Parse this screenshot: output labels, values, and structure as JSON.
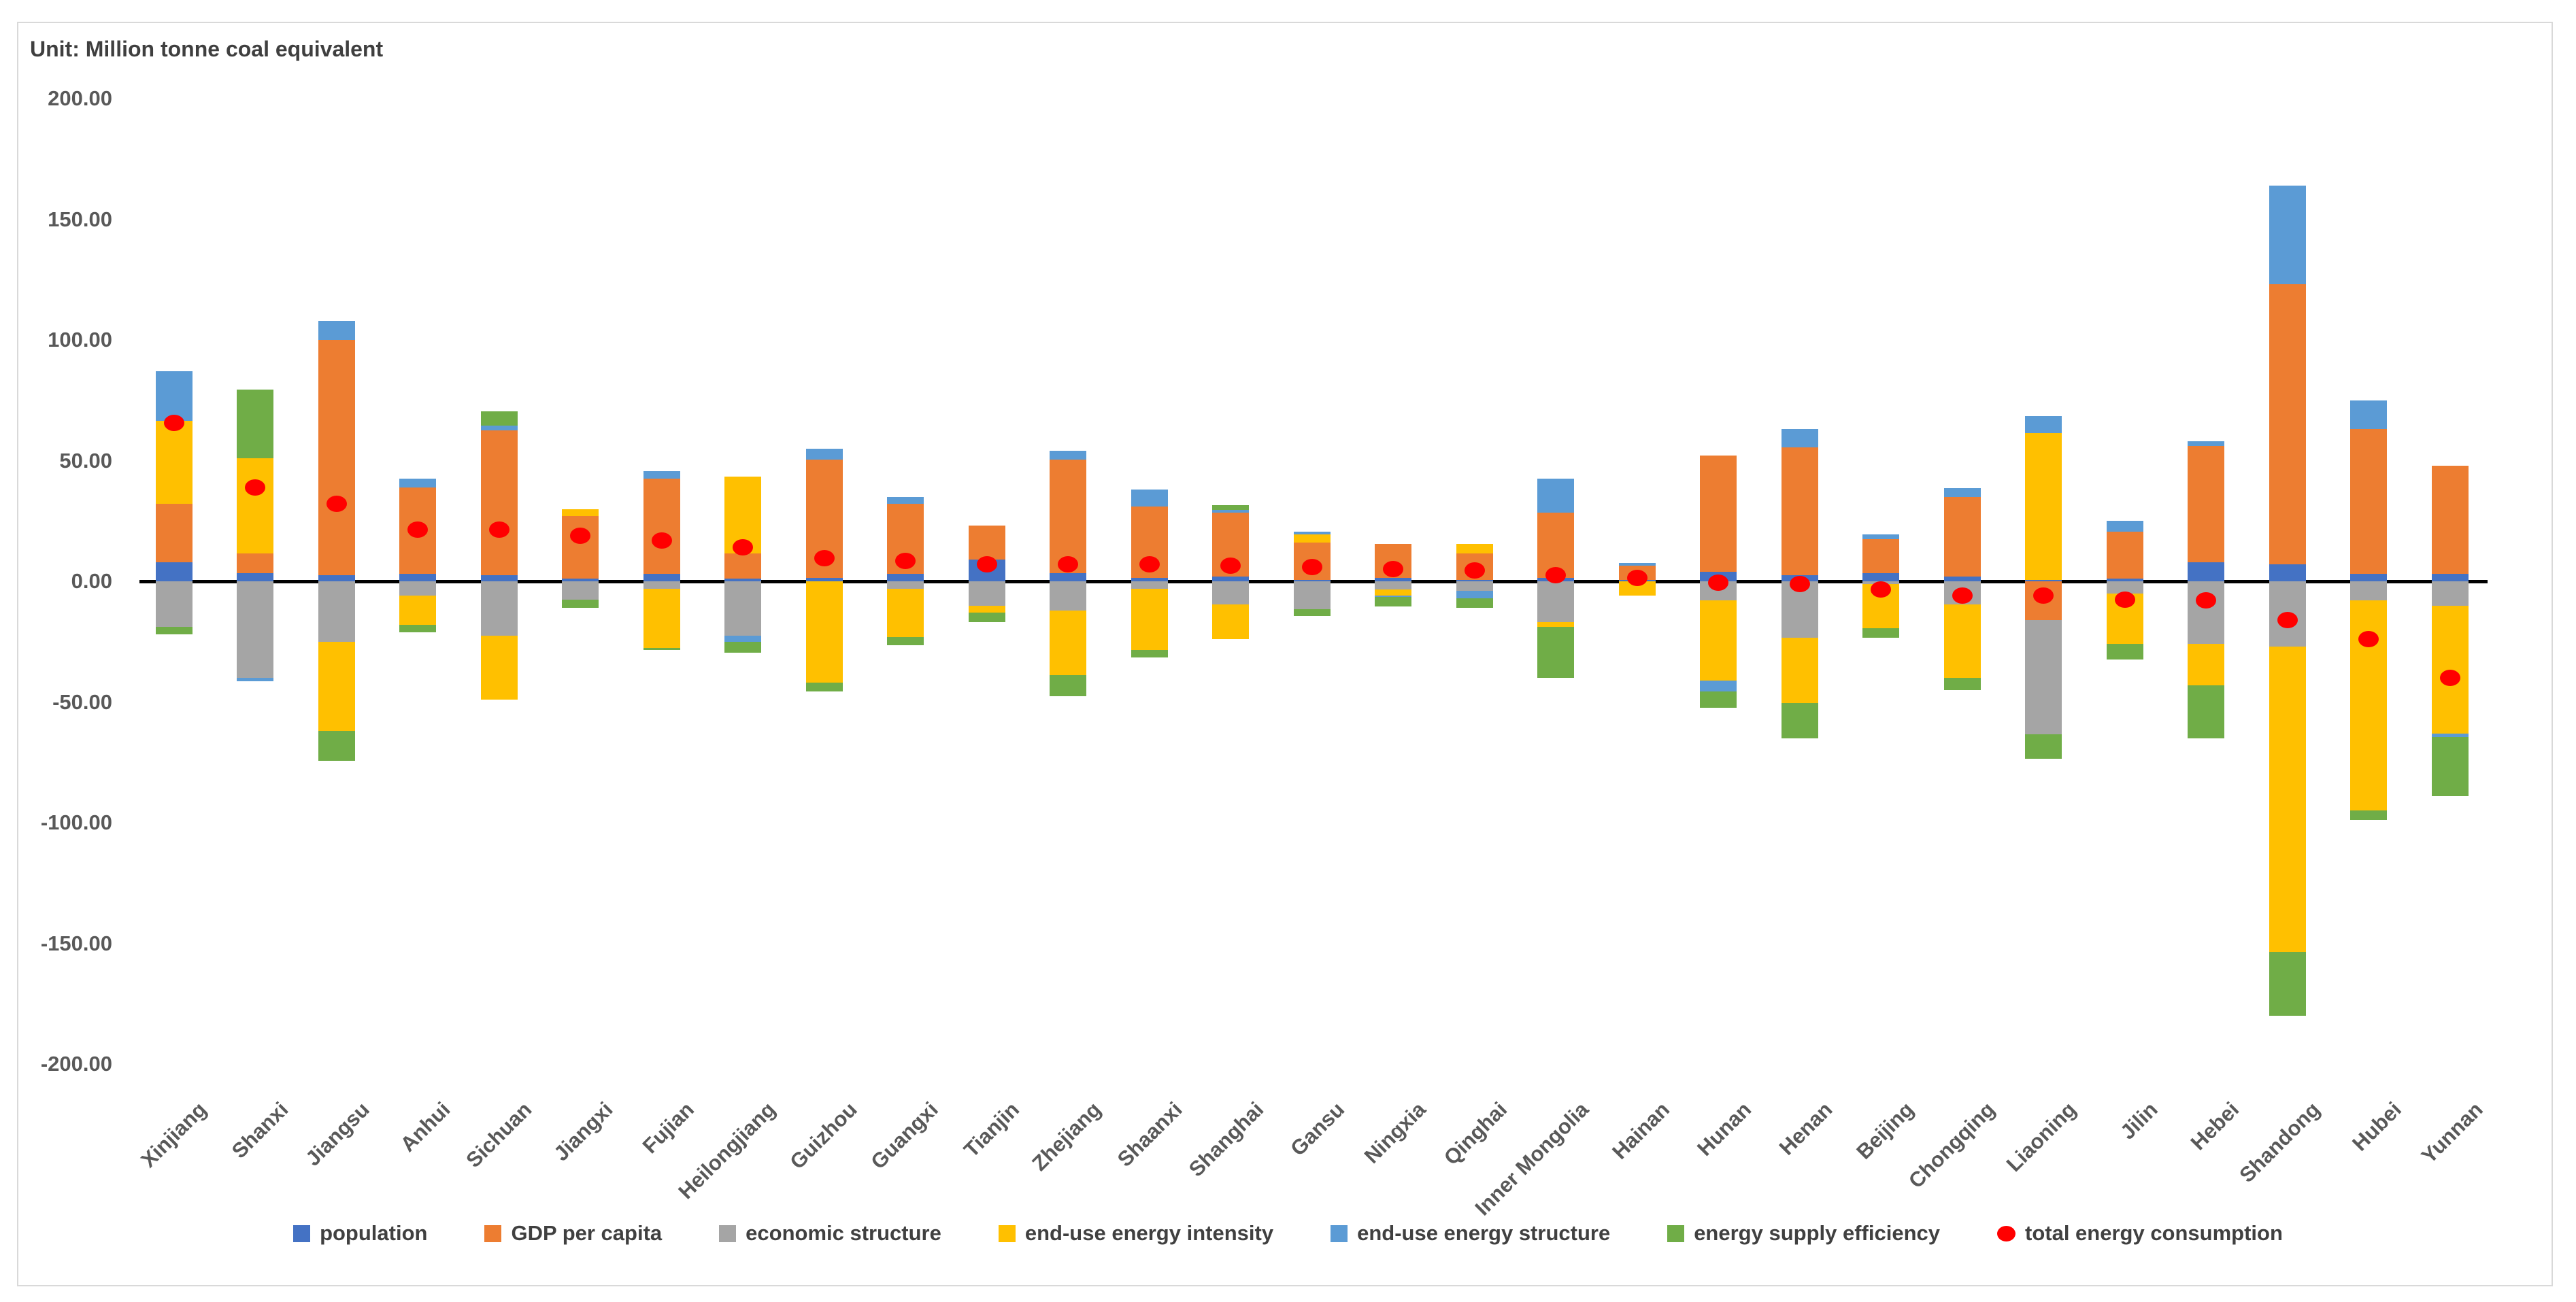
{
  "chart": {
    "unit_label": "Unit: Million tonne coal equivalent"
  },
  "chart_data": {
    "type": "bar",
    "stacked": true,
    "orientation": "vertical",
    "title": "",
    "unit": "Million tonne coal equivalent",
    "grid": false,
    "y_axis": {
      "min": -200,
      "max": 200,
      "tick_interval": 50,
      "tick_values": [
        200,
        150,
        100,
        50,
        0,
        -50,
        -100,
        -150,
        -200
      ],
      "tick_labels": [
        "200.00",
        "150.00",
        "100.00",
        "50.00",
        "0.00",
        "-50.00",
        "-100.00",
        "-150.00",
        "-200.00"
      ]
    },
    "categories": [
      "Xinjiang",
      "Shanxi",
      "Jiangsu",
      "Anhui",
      "Sichuan",
      "Jiangxi",
      "Fujian",
      "Heilongjiang",
      "Guizhou",
      "Guangxi",
      "Tianjin",
      "Zhejiang",
      "Shaanxi",
      "Shanghai",
      "Gansu",
      "Ningxia",
      "Qinghai",
      "Inner Mongolia",
      "Hainan",
      "Hunan",
      "Henan",
      "Beijing",
      "Chongqing",
      "Liaoning",
      "Jilin",
      "Hebei",
      "Shandong",
      "Hubei",
      "Yunnan"
    ],
    "series": [
      {
        "name": "population",
        "color": "#4472C4",
        "values": [
          8,
          3.5,
          2.5,
          3,
          2.5,
          1,
          3,
          1,
          1.5,
          3,
          9,
          3.5,
          1.5,
          2,
          0.5,
          1.5,
          0.5,
          1.5,
          0.5,
          4,
          2.5,
          3.5,
          2,
          0.5,
          1,
          8,
          7,
          3,
          3
        ]
      },
      {
        "name": "GDP per capita",
        "color": "#ED7D31",
        "values": [
          24,
          8,
          97.5,
          36,
          60,
          26,
          39.5,
          10.5,
          49,
          29,
          14,
          47,
          29.5,
          26.5,
          15.5,
          14,
          11,
          27,
          6,
          48,
          53,
          14,
          33,
          -16,
          19.5,
          48,
          116,
          60,
          45
        ]
      },
      {
        "name": "economic structure",
        "color": "#A5A5A5",
        "values": [
          -19,
          -40,
          -25,
          -6,
          -22.5,
          -7.5,
          -3,
          -22.5,
          0,
          -3,
          -10,
          -12,
          -3,
          -9.5,
          -11.5,
          -3.5,
          -4,
          -17,
          0,
          -8,
          -23.5,
          -1,
          -9.5,
          -47.5,
          -5,
          -26,
          -27,
          -8,
          -10
        ]
      },
      {
        "name": "end-use energy intensity",
        "color": "#FFC000",
        "values": [
          34.5,
          39.5,
          -37,
          -12,
          -26.5,
          3,
          -24.5,
          32,
          -42,
          -20,
          -3,
          -27,
          -25.5,
          -14.5,
          3.5,
          -2.5,
          4,
          -2,
          -6,
          -33,
          -27,
          -18.5,
          -30.5,
          61,
          -21,
          -17,
          -126.5,
          -87,
          -53
        ]
      },
      {
        "name": "end-use energy structure",
        "color": "#5B9BD5",
        "values": [
          20.5,
          -1.5,
          8,
          3.5,
          2,
          0,
          3,
          -2.5,
          4.5,
          3,
          0,
          3.5,
          7,
          1,
          1,
          -0.5,
          -3,
          14,
          1,
          -4.5,
          7.5,
          2,
          3.5,
          7,
          4.5,
          2,
          41,
          12,
          -1.5
        ]
      },
      {
        "name": "energy supply efficiency",
        "color": "#70AD47",
        "values": [
          -3,
          28.5,
          -12.5,
          -3,
          6,
          -3.5,
          -1,
          -4.5,
          -3.5,
          -3.5,
          -4,
          -8.5,
          -3,
          2,
          -3,
          -4,
          -4,
          -21,
          0,
          -7,
          -14.5,
          -4,
          -5,
          -10,
          -6.5,
          -22,
          -26.5,
          -4,
          -24.5
        ]
      }
    ],
    "dot_series": {
      "name": "total energy consumption",
      "color": "#FF0000",
      "marker": "circle",
      "values": [
        65.5,
        39,
        32,
        21.5,
        21.5,
        19,
        17,
        14,
        9.5,
        8.5,
        7,
        7,
        7,
        6.5,
        6,
        5,
        4.5,
        2.5,
        1.5,
        -0.5,
        -1,
        -3.5,
        -6,
        -6,
        -7.5,
        -8,
        -16,
        -24,
        -40
      ]
    },
    "legend": {
      "position": "bottom",
      "entries": [
        "population",
        "GDP per capita",
        "economic structure",
        "end-use energy intensity",
        "end-use energy structure",
        "energy supply efficiency",
        "total energy consumption"
      ]
    }
  }
}
